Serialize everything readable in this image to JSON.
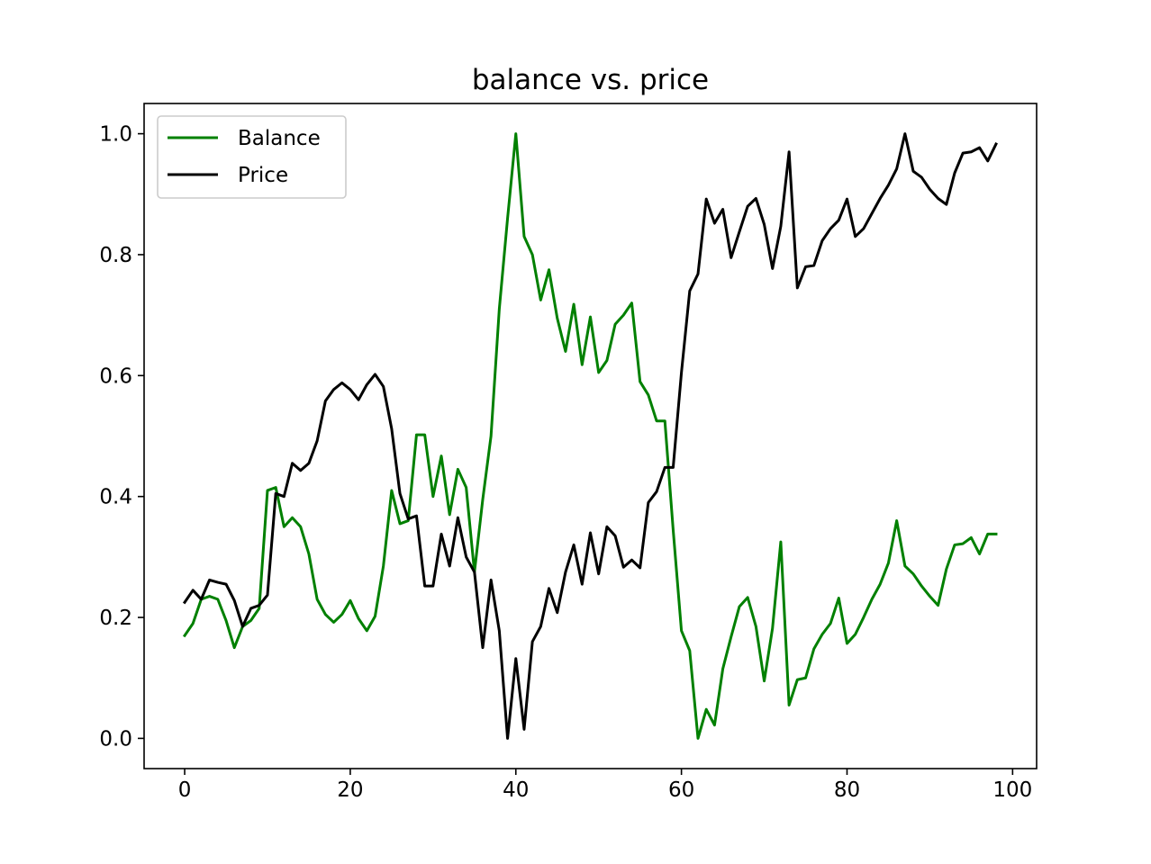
{
  "chart_data": {
    "type": "line",
    "title": "balance vs. price",
    "xlabel": "",
    "ylabel": "",
    "xlim": [
      -4.9,
      102.9
    ],
    "ylim": [
      -0.05,
      1.05
    ],
    "x_ticks": [
      0,
      20,
      40,
      60,
      80,
      100
    ],
    "x_tick_labels": [
      "0",
      "20",
      "40",
      "60",
      "80",
      "100"
    ],
    "y_ticks": [
      0.0,
      0.2,
      0.4,
      0.6,
      0.8,
      1.0
    ],
    "y_tick_labels": [
      "0.0",
      "0.2",
      "0.4",
      "0.6",
      "0.8",
      "1.0"
    ],
    "grid": false,
    "legend_position": "upper-left",
    "x": [
      0,
      1,
      2,
      3,
      4,
      5,
      6,
      7,
      8,
      9,
      10,
      11,
      12,
      13,
      14,
      15,
      16,
      17,
      18,
      19,
      20,
      21,
      22,
      23,
      24,
      25,
      26,
      27,
      28,
      29,
      30,
      31,
      32,
      33,
      34,
      35,
      36,
      37,
      38,
      39,
      40,
      41,
      42,
      43,
      44,
      45,
      46,
      47,
      48,
      49,
      50,
      51,
      52,
      53,
      54,
      55,
      56,
      57,
      58,
      59,
      60,
      61,
      62,
      63,
      64,
      65,
      66,
      67,
      68,
      69,
      70,
      71,
      72,
      73,
      74,
      75,
      76,
      77,
      78,
      79,
      80,
      81,
      82,
      83,
      84,
      85,
      86,
      87,
      88,
      89,
      90,
      91,
      92,
      93,
      94,
      95,
      96,
      97,
      98
    ],
    "series": [
      {
        "name": "Balance",
        "color": "#008000",
        "values": [
          0.17,
          0.19,
          0.23,
          0.235,
          0.23,
          0.195,
          0.15,
          0.185,
          0.195,
          0.215,
          0.41,
          0.415,
          0.35,
          0.365,
          0.35,
          0.305,
          0.23,
          0.205,
          0.192,
          0.205,
          0.228,
          0.198,
          0.178,
          0.202,
          0.285,
          0.41,
          0.355,
          0.36,
          0.502,
          0.502,
          0.4,
          0.467,
          0.37,
          0.445,
          0.415,
          0.275,
          0.395,
          0.5,
          0.71,
          0.86,
          1.0,
          0.83,
          0.8,
          0.725,
          0.775,
          0.695,
          0.64,
          0.718,
          0.618,
          0.697,
          0.605,
          0.625,
          0.685,
          0.7,
          0.72,
          0.59,
          0.568,
          0.525,
          0.525,
          0.345,
          0.178,
          0.145,
          0.0,
          0.048,
          0.022,
          0.115,
          0.168,
          0.218,
          0.233,
          0.185,
          0.095,
          0.182,
          0.325,
          0.055,
          0.097,
          0.1,
          0.148,
          0.172,
          0.19,
          0.232,
          0.157,
          0.172,
          0.2,
          0.23,
          0.255,
          0.29,
          0.36,
          0.285,
          0.272,
          0.252,
          0.235,
          0.22,
          0.28,
          0.32,
          0.322,
          0.332,
          0.305,
          0.338,
          0.338
        ]
      },
      {
        "name": "Price",
        "color": "#000000",
        "values": [
          0.225,
          0.245,
          0.23,
          0.262,
          0.258,
          0.255,
          0.228,
          0.185,
          0.215,
          0.22,
          0.237,
          0.405,
          0.4,
          0.455,
          0.443,
          0.455,
          0.492,
          0.558,
          0.577,
          0.588,
          0.577,
          0.56,
          0.585,
          0.602,
          0.582,
          0.512,
          0.405,
          0.363,
          0.368,
          0.252,
          0.252,
          0.338,
          0.285,
          0.365,
          0.3,
          0.275,
          0.15,
          0.262,
          0.178,
          0.0,
          0.132,
          0.015,
          0.16,
          0.185,
          0.248,
          0.208,
          0.275,
          0.32,
          0.255,
          0.34,
          0.272,
          0.35,
          0.335,
          0.283,
          0.295,
          0.282,
          0.39,
          0.408,
          0.448,
          0.448,
          0.605,
          0.74,
          0.768,
          0.892,
          0.852,
          0.875,
          0.795,
          0.838,
          0.88,
          0.893,
          0.85,
          0.777,
          0.847,
          0.97,
          0.745,
          0.78,
          0.782,
          0.823,
          0.843,
          0.857,
          0.892,
          0.83,
          0.843,
          0.868,
          0.893,
          0.915,
          0.942,
          1.0,
          0.938,
          0.928,
          0.908,
          0.893,
          0.883,
          0.935,
          0.968,
          0.97,
          0.977,
          0.955,
          0.983
        ]
      }
    ]
  }
}
